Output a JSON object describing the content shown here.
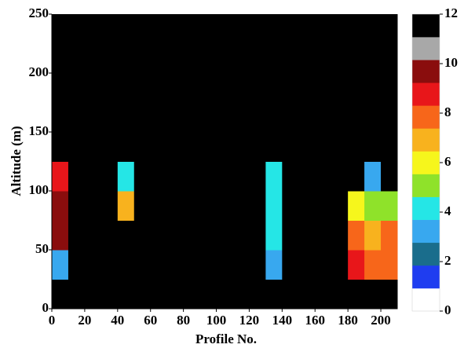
{
  "chart_data": {
    "type": "heatmap",
    "xlabel": "Profile No.",
    "ylabel": "Altitude (m)",
    "xlim": [
      0,
      210
    ],
    "ylim": [
      0,
      250
    ],
    "xticks": [
      0,
      20,
      40,
      60,
      80,
      100,
      120,
      140,
      160,
      180,
      200
    ],
    "yticks": [
      0,
      50,
      100,
      150,
      200,
      250
    ],
    "x_bins": [
      0,
      10,
      20,
      30,
      40,
      50,
      60,
      70,
      80,
      90,
      100,
      110,
      120,
      130,
      140,
      150,
      160,
      170,
      180,
      190,
      200,
      210
    ],
    "y_bins": [
      0,
      25,
      50,
      75,
      100,
      125,
      150,
      175,
      200,
      225,
      250
    ],
    "z": [
      [
        12,
        12,
        12,
        12,
        12,
        12,
        12,
        12,
        12,
        12,
        12,
        12,
        12,
        12,
        12,
        12,
        12,
        12,
        12,
        12,
        12
      ],
      [
        3,
        12,
        12,
        12,
        12,
        12,
        12,
        12,
        12,
        12,
        12,
        12,
        12,
        3,
        12,
        12,
        12,
        12,
        9,
        8,
        8
      ],
      [
        10,
        12,
        12,
        12,
        12,
        12,
        12,
        12,
        12,
        12,
        12,
        12,
        12,
        4,
        12,
        12,
        12,
        12,
        8,
        7,
        8
      ],
      [
        10,
        12,
        12,
        12,
        7,
        12,
        12,
        12,
        12,
        12,
        12,
        12,
        12,
        4,
        12,
        12,
        12,
        12,
        6,
        5,
        5
      ],
      [
        9,
        12,
        12,
        12,
        4,
        12,
        12,
        12,
        12,
        12,
        12,
        12,
        12,
        4,
        12,
        12,
        12,
        12,
        12,
        3,
        12
      ],
      [
        12,
        12,
        12,
        12,
        12,
        12,
        12,
        12,
        12,
        12,
        12,
        12,
        12,
        12,
        12,
        12,
        12,
        12,
        12,
        12,
        12
      ],
      [
        12,
        12,
        12,
        12,
        12,
        12,
        12,
        12,
        12,
        12,
        12,
        12,
        12,
        12,
        12,
        12,
        12,
        12,
        12,
        12,
        12
      ],
      [
        12,
        12,
        12,
        12,
        12,
        12,
        12,
        12,
        12,
        12,
        12,
        12,
        12,
        12,
        12,
        12,
        12,
        12,
        12,
        12,
        12
      ],
      [
        12,
        12,
        12,
        12,
        12,
        12,
        12,
        12,
        12,
        12,
        12,
        12,
        12,
        12,
        12,
        12,
        12,
        12,
        12,
        12,
        12
      ],
      [
        12,
        12,
        12,
        12,
        12,
        12,
        12,
        12,
        12,
        12,
        12,
        12,
        12,
        12,
        12,
        12,
        12,
        12,
        12,
        12,
        12
      ]
    ],
    "clim": [
      0,
      12
    ],
    "cticks": [
      0,
      2,
      4,
      6,
      8,
      10,
      12
    ],
    "colors": [
      "#ffffff",
      "#1f3df0",
      "#1a6d8c",
      "#38a8ef",
      "#25e6e6",
      "#8fe22a",
      "#f6f61c",
      "#f8b21e",
      "#f7661a",
      "#e8161a",
      "#8a0d0d",
      "#a8a8a8",
      "#000000"
    ]
  }
}
